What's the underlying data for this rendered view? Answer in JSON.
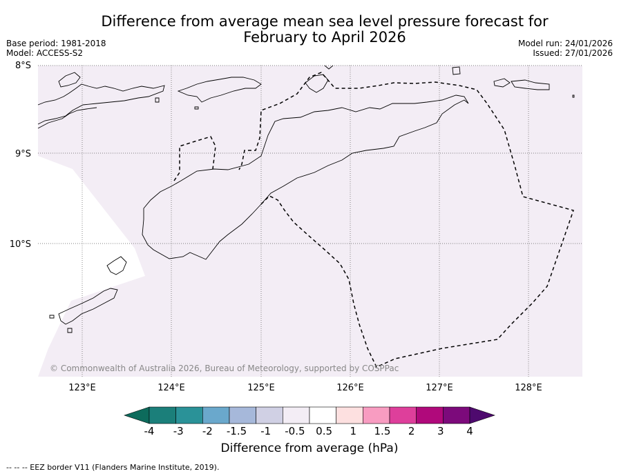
{
  "title_line1": "Difference from average mean sea level pressure forecast for",
  "title_line2": "February to April 2026",
  "base_period": "Base period: 1981-2018",
  "model": "Model: ACCESS-S2",
  "model_run": "Model run: 24/01/2026",
  "issued": "Issued: 27/01/2026",
  "map": {
    "lat_labels": [
      "8°S",
      "9°S",
      "10°S"
    ],
    "lon_labels": [
      "123°E",
      "124°E",
      "125°E",
      "126°E",
      "127°E",
      "128°E"
    ],
    "lat_range": [
      -11.5,
      -8.0
    ],
    "lon_range": [
      122.5,
      128.6
    ],
    "copyright": "© Commonwealth of Australia 2026, Bureau of Meteorology, supported by COSPPac",
    "anomaly_fill_color": "#f3edf5"
  },
  "colorbar": {
    "tick_labels": [
      "-4",
      "-3",
      "-2",
      "-1.5",
      "-1",
      "-0.5",
      "0.5",
      "1",
      "1.5",
      "2",
      "3",
      "4"
    ],
    "colors": [
      "#1b7f7a",
      "#2a9298",
      "#6aa8cc",
      "#a6b8da",
      "#d0d0e4",
      "#f3edf5",
      "#ffffff",
      "#fde0e0",
      "#f89cc1",
      "#de3f9b",
      "#b0097b",
      "#7c0a7b"
    ],
    "under_color": "#0d6b5c",
    "over_color": "#4e0a6e",
    "label": "Difference from average (hPa)"
  },
  "footnote": "--  --  -- EEZ border V11 (Flanders Marine Institute, 2019)."
}
